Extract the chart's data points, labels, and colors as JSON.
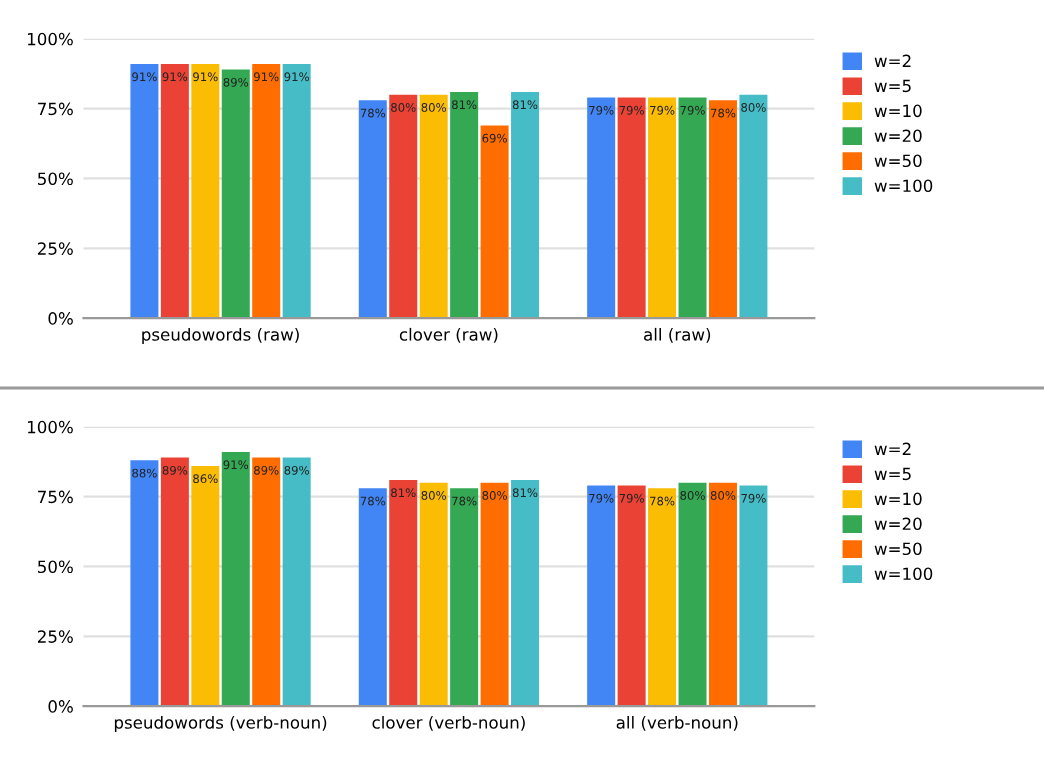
{
  "chart_data": [
    {
      "type": "bar",
      "categories": [
        "pseudowords (raw)",
        "clover (raw)",
        "all (raw)"
      ],
      "series": [
        {
          "name": "w=2",
          "color": "#4285f4",
          "values": [
            91,
            78,
            79
          ],
          "value_labels": [
            "91%",
            "78%",
            "79%"
          ]
        },
        {
          "name": "w=5",
          "color": "#ea4335",
          "values": [
            91,
            80,
            79
          ],
          "value_labels": [
            "91%",
            "80%",
            "79%"
          ]
        },
        {
          "name": "w=10",
          "color": "#fbbc04",
          "values": [
            91,
            80,
            79
          ],
          "value_labels": [
            "91%",
            "80%",
            "79%"
          ]
        },
        {
          "name": "w=20",
          "color": "#34a853",
          "values": [
            89,
            81,
            79
          ],
          "value_labels": [
            "89%",
            "81%",
            "79%"
          ]
        },
        {
          "name": "w=50",
          "color": "#ff6d01",
          "values": [
            91,
            69,
            78
          ],
          "value_labels": [
            "91%",
            "69%",
            "78%"
          ]
        },
        {
          "name": "w=100",
          "color": "#46bdc6",
          "values": [
            91,
            81,
            80
          ],
          "value_labels": [
            "91%",
            "81%",
            "80%"
          ]
        }
      ],
      "ylim": [
        0,
        100
      ],
      "yticks": [
        {
          "value": 0,
          "label": "0%"
        },
        {
          "value": 25,
          "label": "25%"
        },
        {
          "value": 50,
          "label": "50%"
        },
        {
          "value": 75,
          "label": "75%"
        },
        {
          "value": 100,
          "label": "100%"
        }
      ],
      "grid": "y",
      "legend": "right"
    },
    {
      "type": "bar",
      "categories": [
        "pseudowords (verb-noun)",
        "clover (verb-noun)",
        "all (verb-noun)"
      ],
      "series": [
        {
          "name": "w=2",
          "color": "#4285f4",
          "values": [
            88,
            78,
            79
          ],
          "value_labels": [
            "88%",
            "78%",
            "79%"
          ]
        },
        {
          "name": "w=5",
          "color": "#ea4335",
          "values": [
            89,
            81,
            79
          ],
          "value_labels": [
            "89%",
            "81%",
            "79%"
          ]
        },
        {
          "name": "w=10",
          "color": "#fbbc04",
          "values": [
            86,
            80,
            78
          ],
          "value_labels": [
            "86%",
            "80%",
            "78%"
          ]
        },
        {
          "name": "w=20",
          "color": "#34a853",
          "values": [
            91,
            78,
            80
          ],
          "value_labels": [
            "91%",
            "78%",
            "80%"
          ]
        },
        {
          "name": "w=50",
          "color": "#ff6d01",
          "values": [
            89,
            80,
            80
          ],
          "value_labels": [
            "89%",
            "80%",
            "80%"
          ]
        },
        {
          "name": "w=100",
          "color": "#46bdc6",
          "values": [
            89,
            81,
            79
          ],
          "value_labels": [
            "89%",
            "81%",
            "79%"
          ]
        }
      ],
      "ylim": [
        0,
        100
      ],
      "yticks": [
        {
          "value": 0,
          "label": "0%"
        },
        {
          "value": 25,
          "label": "25%"
        },
        {
          "value": 50,
          "label": "50%"
        },
        {
          "value": 75,
          "label": "75%"
        },
        {
          "value": 100,
          "label": "100%"
        }
      ],
      "grid": "y",
      "legend": "right"
    }
  ]
}
